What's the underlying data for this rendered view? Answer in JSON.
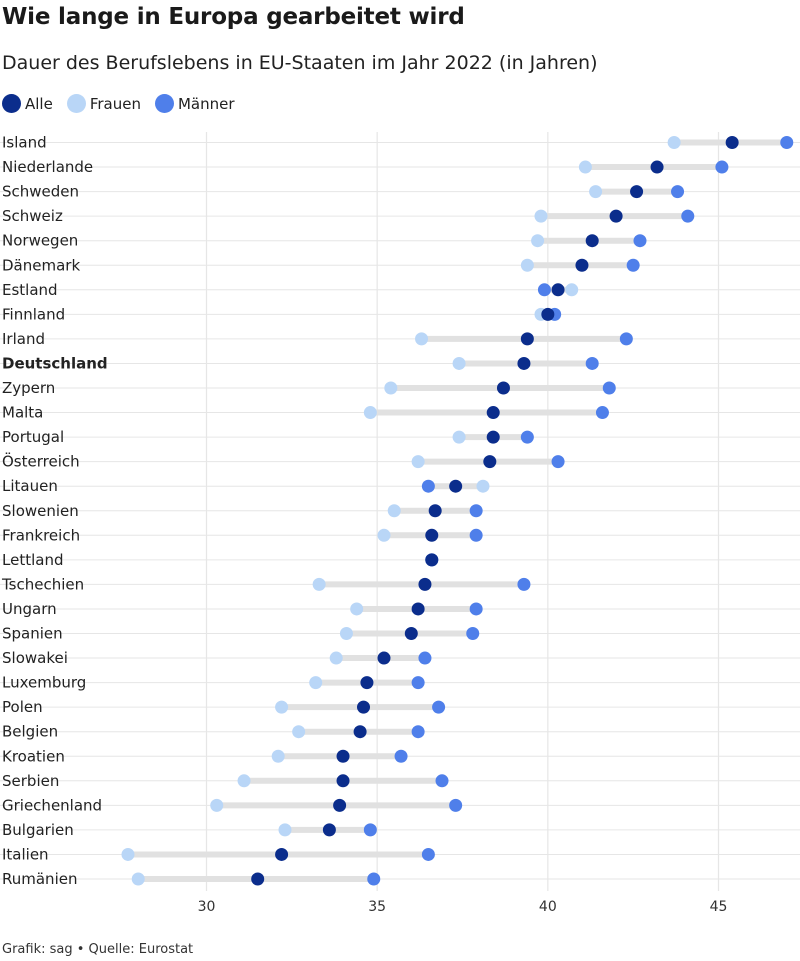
{
  "title": "Wie lange in Europa gearbeitet wird",
  "subtitle": "Dauer des Berufslebens in EU-Staaten im Jahr 2022 (in Jahren)",
  "source": "Grafik: sag • Quelle: Eurostat",
  "colors": {
    "alle": "#0b2d8c",
    "frauen": "#b9d6f7",
    "maenner": "#4f7fea",
    "range": "#e1e1e1",
    "grid": "#e6e6e6"
  },
  "chart_data": {
    "type": "scatter",
    "title": "Wie lange in Europa gearbeitet wird",
    "subtitle": "Dauer des Berufslebens in EU-Staaten im Jahr 2022 (in Jahren)",
    "xlabel": "",
    "ylabel": "",
    "xlim": [
      27.5,
      47.2
    ],
    "xticks": [
      30,
      35,
      40,
      45
    ],
    "grid": true,
    "legend_position": "top-left",
    "series": [
      {
        "key": "alle",
        "name": "Alle"
      },
      {
        "key": "frauen",
        "name": "Frauen"
      },
      {
        "key": "maenner",
        "name": "Männer"
      }
    ],
    "rows": [
      {
        "country": "Island",
        "alle": 45.4,
        "frauen": 43.7,
        "maenner": 47.0
      },
      {
        "country": "Niederlande",
        "alle": 43.2,
        "frauen": 41.1,
        "maenner": 45.1
      },
      {
        "country": "Schweden",
        "alle": 42.6,
        "frauen": 41.4,
        "maenner": 43.8
      },
      {
        "country": "Schweiz",
        "alle": 42.0,
        "frauen": 39.8,
        "maenner": 44.1
      },
      {
        "country": "Norwegen",
        "alle": 41.3,
        "frauen": 39.7,
        "maenner": 42.7
      },
      {
        "country": "Dänemark",
        "alle": 41.0,
        "frauen": 39.4,
        "maenner": 42.5
      },
      {
        "country": "Estland",
        "alle": 40.3,
        "frauen": 40.7,
        "maenner": 39.9
      },
      {
        "country": "Finnland",
        "alle": 40.0,
        "frauen": 39.8,
        "maenner": 40.2
      },
      {
        "country": "Irland",
        "alle": 39.4,
        "frauen": 36.3,
        "maenner": 42.3
      },
      {
        "country": "Deutschland",
        "alle": 39.3,
        "frauen": 37.4,
        "maenner": 41.3,
        "highlight": true
      },
      {
        "country": "Zypern",
        "alle": 38.7,
        "frauen": 35.4,
        "maenner": 41.8
      },
      {
        "country": "Malta",
        "alle": 38.4,
        "frauen": 34.8,
        "maenner": 41.6
      },
      {
        "country": "Portugal",
        "alle": 38.4,
        "frauen": 37.4,
        "maenner": 39.4
      },
      {
        "country": "Österreich",
        "alle": 38.3,
        "frauen": 36.2,
        "maenner": 40.3
      },
      {
        "country": "Litauen",
        "alle": 37.3,
        "frauen": 38.1,
        "maenner": 36.5
      },
      {
        "country": "Slowenien",
        "alle": 36.7,
        "frauen": 35.5,
        "maenner": 37.9
      },
      {
        "country": "Frankreich",
        "alle": 36.6,
        "frauen": 35.2,
        "maenner": 37.9
      },
      {
        "country": "Lettland",
        "alle": 36.6,
        "frauen": 36.6,
        "maenner": 36.6
      },
      {
        "country": "Tschechien",
        "alle": 36.4,
        "frauen": 33.3,
        "maenner": 39.3
      },
      {
        "country": "Ungarn",
        "alle": 36.2,
        "frauen": 34.4,
        "maenner": 37.9
      },
      {
        "country": "Spanien",
        "alle": 36.0,
        "frauen": 34.1,
        "maenner": 37.8
      },
      {
        "country": "Slowakei",
        "alle": 35.2,
        "frauen": 33.8,
        "maenner": 36.4
      },
      {
        "country": "Luxemburg",
        "alle": 34.7,
        "frauen": 33.2,
        "maenner": 36.2
      },
      {
        "country": "Polen",
        "alle": 34.6,
        "frauen": 32.2,
        "maenner": 36.8
      },
      {
        "country": "Belgien",
        "alle": 34.5,
        "frauen": 32.7,
        "maenner": 36.2
      },
      {
        "country": "Kroatien",
        "alle": 34.0,
        "frauen": 32.1,
        "maenner": 35.7
      },
      {
        "country": "Serbien",
        "alle": 34.0,
        "frauen": 31.1,
        "maenner": 36.9
      },
      {
        "country": "Griechenland",
        "alle": 33.9,
        "frauen": 30.3,
        "maenner": 37.3
      },
      {
        "country": "Bulgarien",
        "alle": 33.6,
        "frauen": 32.3,
        "maenner": 34.8
      },
      {
        "country": "Italien",
        "alle": 32.2,
        "frauen": 27.7,
        "maenner": 36.5
      },
      {
        "country": "Rumänien",
        "alle": 31.5,
        "frauen": 28.0,
        "maenner": 34.9
      }
    ]
  }
}
